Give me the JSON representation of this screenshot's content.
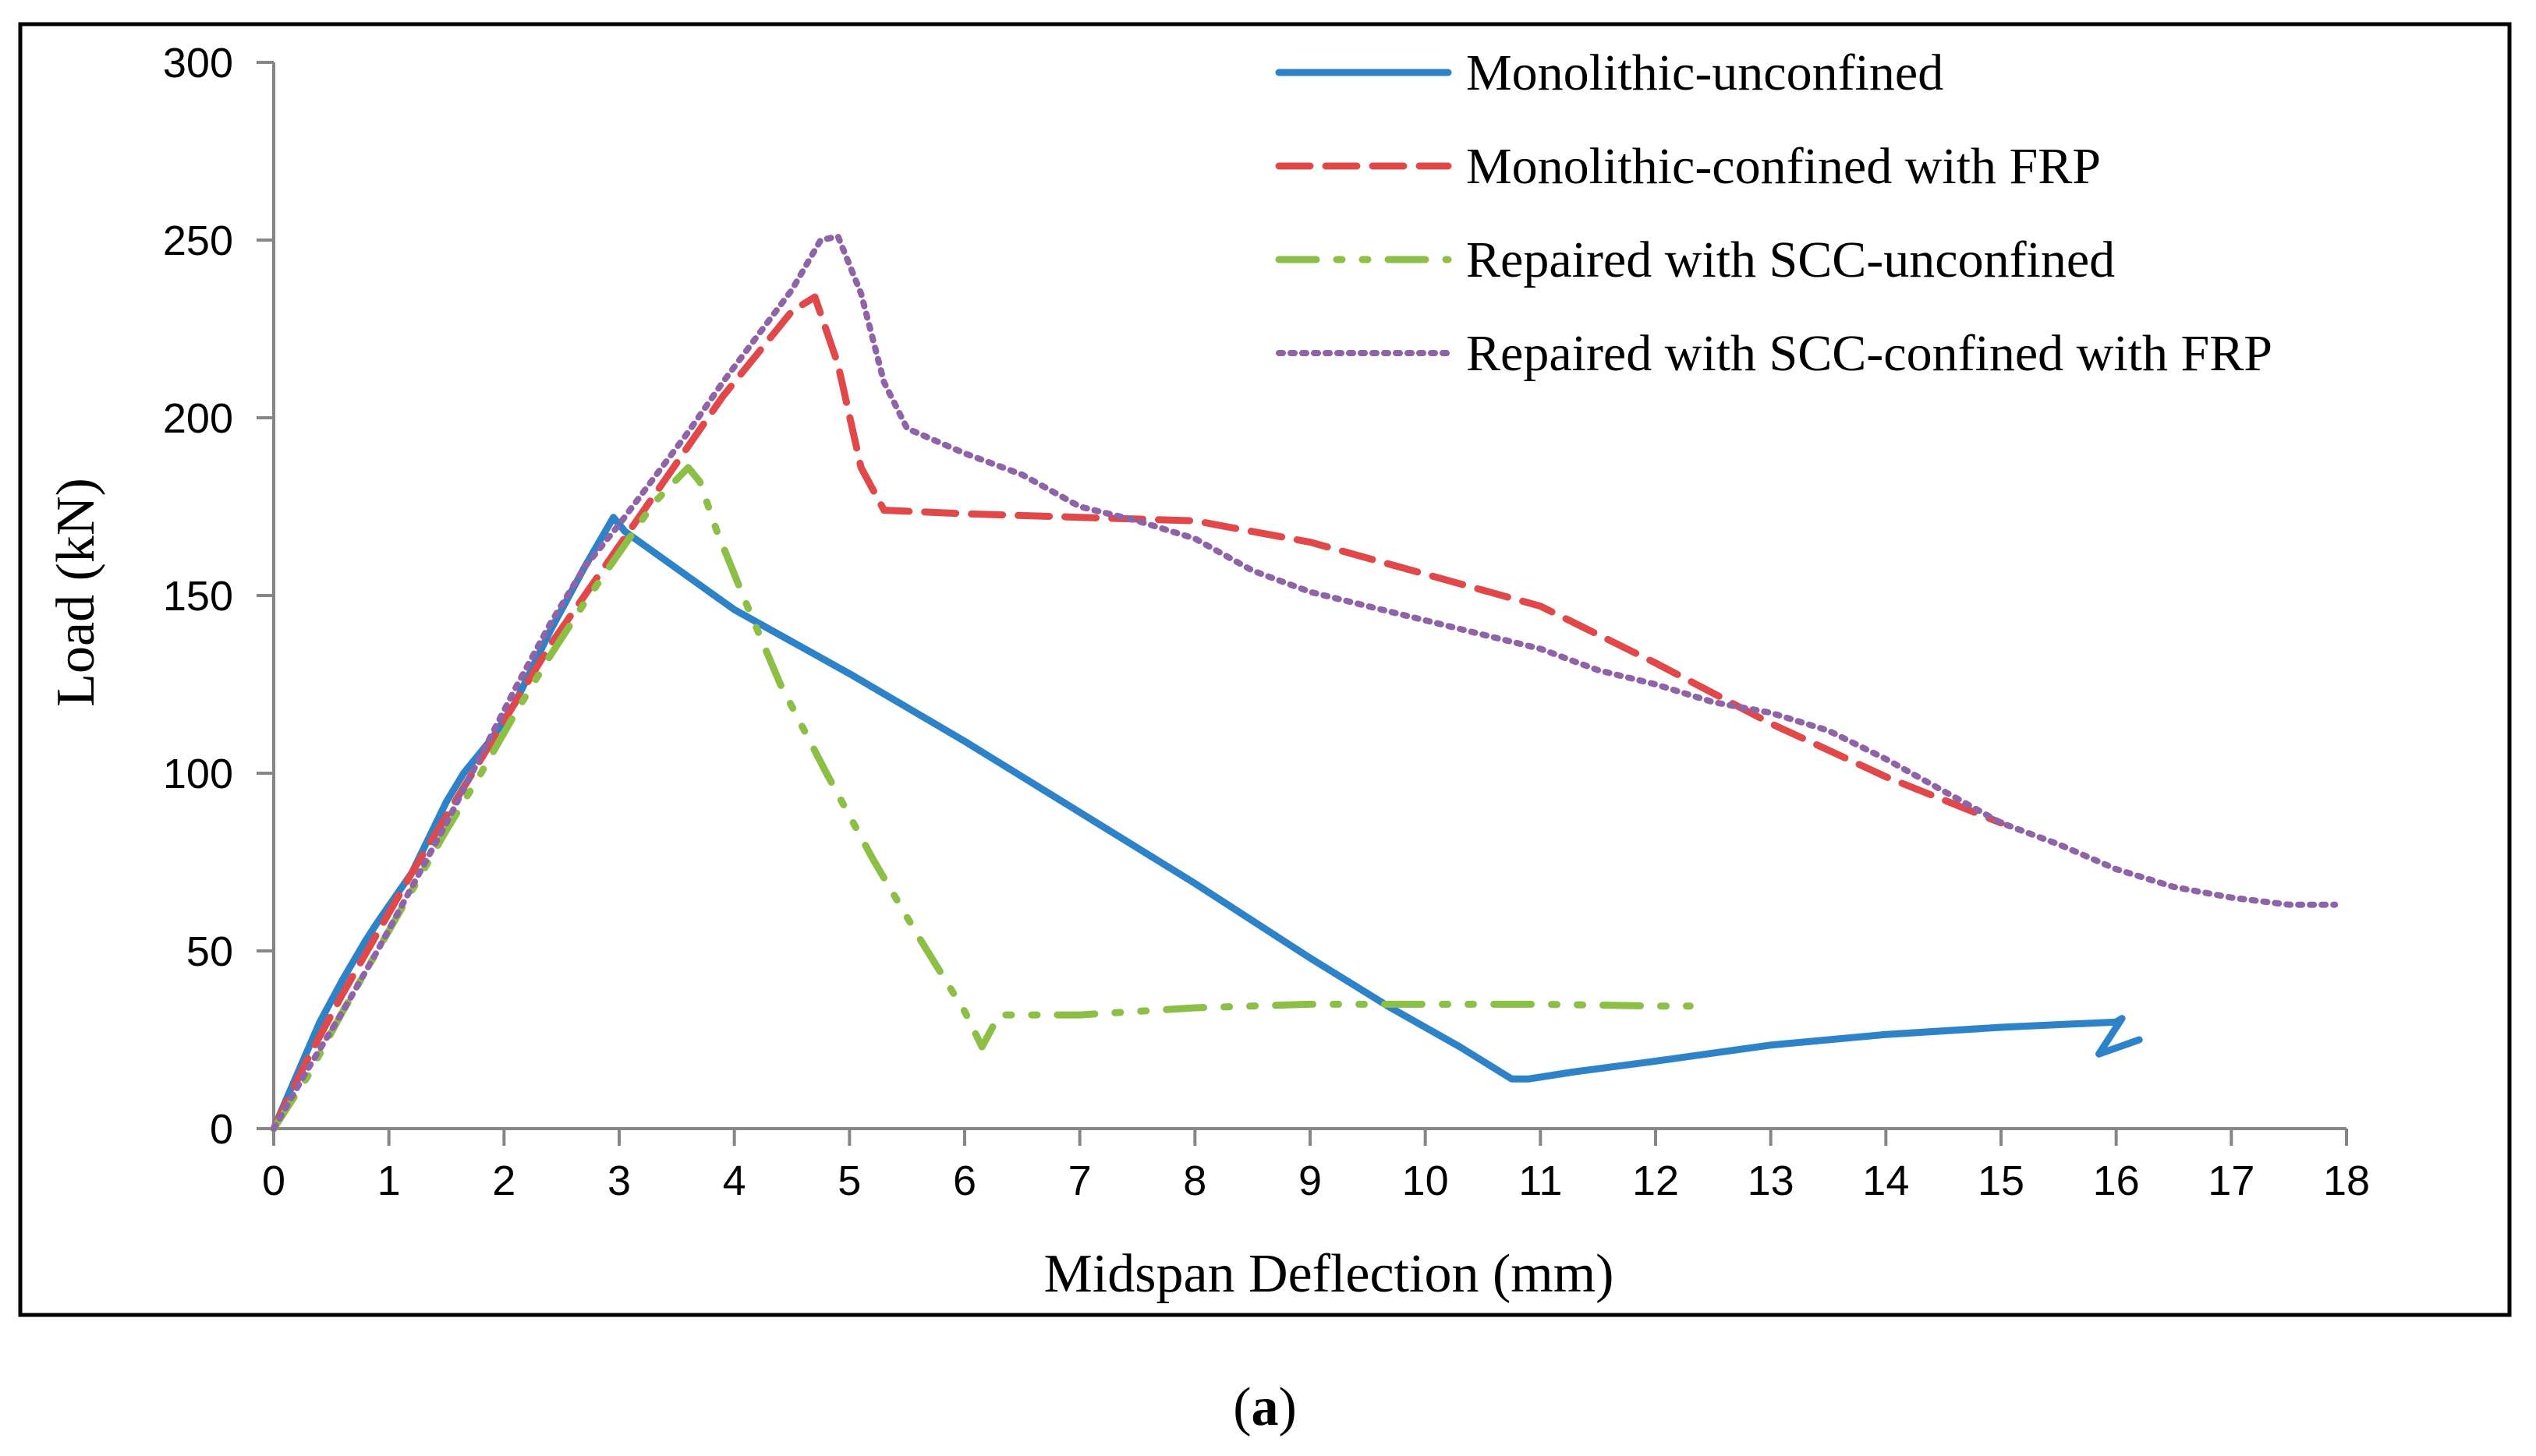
{
  "caption": {
    "open": "(",
    "letter": "a",
    "close": ")"
  },
  "chart_data": {
    "type": "line",
    "title": "",
    "xlabel": "Midspan Deflection (mm)",
    "ylabel": "Load (kN)",
    "xlim": [
      0,
      18
    ],
    "ylim": [
      0,
      300
    ],
    "x_ticks": [
      0,
      1,
      2,
      3,
      4,
      5,
      6,
      7,
      8,
      9,
      10,
      11,
      12,
      13,
      14,
      15,
      16,
      17,
      18
    ],
    "y_ticks": [
      0,
      50,
      100,
      150,
      200,
      250,
      300
    ],
    "grid": false,
    "legend_position": "top-right",
    "series": [
      {
        "name": "Monolithic-unconfined",
        "color": "#2E83C8",
        "style": "solid",
        "points": [
          [
            0,
            0
          ],
          [
            0.2,
            15
          ],
          [
            0.4,
            30
          ],
          [
            0.6,
            42
          ],
          [
            0.8,
            53
          ],
          [
            0.9,
            58
          ],
          [
            1.2,
            72
          ],
          [
            1.5,
            92
          ],
          [
            1.65,
            100
          ],
          [
            1.9,
            110
          ],
          [
            2.1,
            120
          ],
          [
            2.4,
            140
          ],
          [
            2.7,
            158
          ],
          [
            2.95,
            172
          ],
          [
            3.05,
            168
          ],
          [
            4,
            146
          ],
          [
            5,
            128
          ],
          [
            6,
            109
          ],
          [
            7,
            89
          ],
          [
            8,
            69
          ],
          [
            9,
            48
          ],
          [
            9.7,
            34
          ],
          [
            10.3,
            23
          ],
          [
            10.75,
            14
          ],
          [
            10.9,
            14
          ],
          [
            11.3,
            16
          ],
          [
            12,
            19
          ],
          [
            13,
            23.5
          ],
          [
            14,
            26.5
          ],
          [
            15,
            28.5
          ],
          [
            16,
            30
          ],
          [
            16.05,
            31
          ],
          [
            15.85,
            21
          ],
          [
            16.2,
            25
          ]
        ]
      },
      {
        "name": "Monolithic-confined with FRP",
        "color": "#E0484A",
        "style": "dashed",
        "points": [
          [
            0,
            0
          ],
          [
            0.3,
            20
          ],
          [
            0.6,
            38
          ],
          [
            0.9,
            55
          ],
          [
            1.2,
            72
          ],
          [
            1.5,
            88
          ],
          [
            1.8,
            104
          ],
          [
            2.1,
            120
          ],
          [
            2.4,
            136
          ],
          [
            2.7,
            150
          ],
          [
            3,
            164
          ],
          [
            3.3,
            178
          ],
          [
            3.6,
            192
          ],
          [
            3.9,
            206
          ],
          [
            4.2,
            218
          ],
          [
            4.5,
            230
          ],
          [
            4.7,
            234
          ],
          [
            4.9,
            215
          ],
          [
            5.1,
            186
          ],
          [
            5.3,
            174
          ],
          [
            6,
            173
          ],
          [
            7,
            172
          ],
          [
            8,
            171
          ],
          [
            9,
            165
          ],
          [
            10,
            156
          ],
          [
            11,
            147
          ],
          [
            12,
            131
          ],
          [
            13,
            114
          ],
          [
            14,
            99
          ],
          [
            15,
            86
          ]
        ]
      },
      {
        "name": "Repaired with SCC-unconfined",
        "color": "#8BBF45",
        "style": "dashdotdot",
        "points": [
          [
            0,
            0
          ],
          [
            0.3,
            15
          ],
          [
            0.6,
            33
          ],
          [
            0.9,
            50
          ],
          [
            1.2,
            67
          ],
          [
            1.5,
            84
          ],
          [
            1.8,
            100
          ],
          [
            2.1,
            117
          ],
          [
            2.4,
            133
          ],
          [
            2.7,
            148
          ],
          [
            3,
            162
          ],
          [
            3.3,
            176
          ],
          [
            3.6,
            186
          ],
          [
            3.7,
            182
          ],
          [
            3.85,
            168
          ],
          [
            4.1,
            148
          ],
          [
            4.4,
            125
          ],
          [
            4.8,
            100
          ],
          [
            5.2,
            76
          ],
          [
            5.6,
            54
          ],
          [
            6,
            33
          ],
          [
            6.15,
            23
          ],
          [
            6.3,
            32
          ],
          [
            7,
            32
          ],
          [
            7.5,
            33
          ],
          [
            8,
            34
          ],
          [
            9,
            35
          ],
          [
            10,
            35
          ],
          [
            11,
            35
          ],
          [
            12,
            34.5
          ],
          [
            12.3,
            34.5
          ]
        ]
      },
      {
        "name": "Repaired with SCC-confined with FRP",
        "color": "#8E63A8",
        "style": "dotted",
        "points": [
          [
            0,
            0
          ],
          [
            0.3,
            17
          ],
          [
            0.6,
            33
          ],
          [
            0.9,
            50
          ],
          [
            1.2,
            68
          ],
          [
            1.5,
            86
          ],
          [
            1.8,
            105
          ],
          [
            2.1,
            124
          ],
          [
            2.4,
            142
          ],
          [
            2.7,
            158
          ],
          [
            3,
            170
          ],
          [
            3.3,
            183
          ],
          [
            3.6,
            196
          ],
          [
            3.9,
            210
          ],
          [
            4.2,
            223
          ],
          [
            4.5,
            236
          ],
          [
            4.75,
            250
          ],
          [
            4.9,
            251
          ],
          [
            5.1,
            235
          ],
          [
            5.3,
            210
          ],
          [
            5.5,
            197
          ],
          [
            6,
            190
          ],
          [
            6.5,
            184
          ],
          [
            7,
            175
          ],
          [
            7.5,
            171
          ],
          [
            8,
            166
          ],
          [
            8.5,
            157
          ],
          [
            9,
            151
          ],
          [
            9.5,
            147
          ],
          [
            10,
            143
          ],
          [
            10.5,
            139
          ],
          [
            11,
            135
          ],
          [
            11.5,
            129
          ],
          [
            12,
            125
          ],
          [
            12.5,
            120
          ],
          [
            13,
            117
          ],
          [
            13.5,
            112
          ],
          [
            14,
            104
          ],
          [
            14.5,
            95
          ],
          [
            15,
            86
          ],
          [
            15.5,
            80
          ],
          [
            16,
            73
          ],
          [
            16.5,
            68
          ],
          [
            17,
            65
          ],
          [
            17.5,
            63
          ],
          [
            17.9,
            63
          ]
        ]
      }
    ]
  }
}
